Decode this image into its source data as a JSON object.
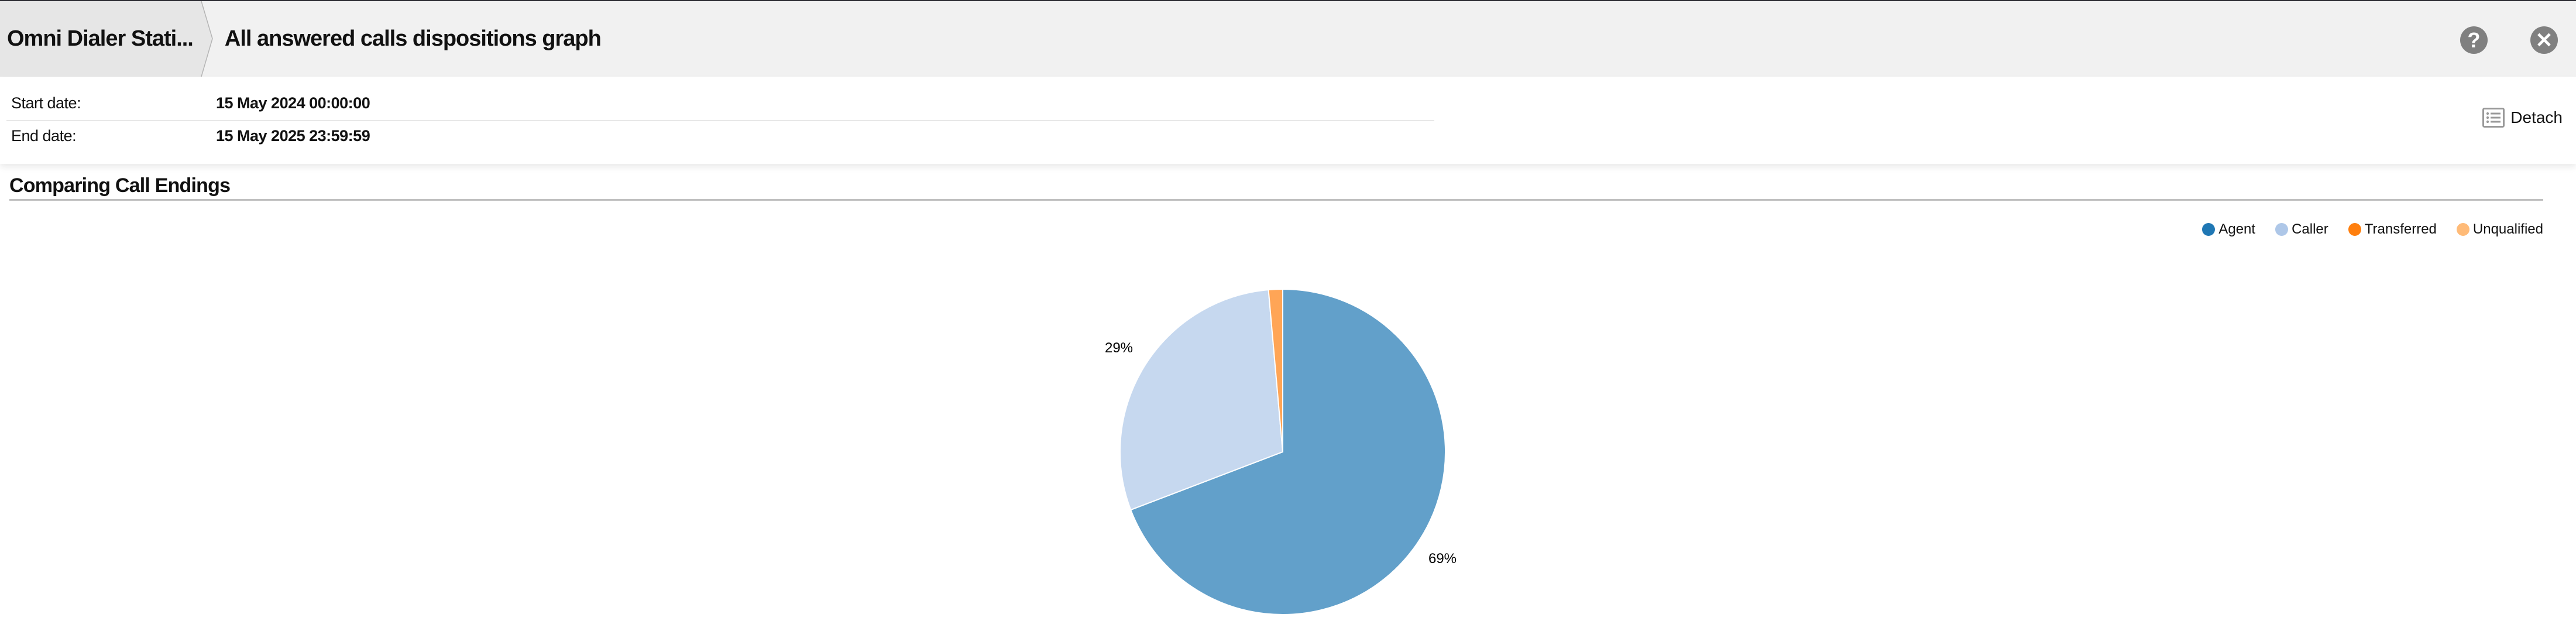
{
  "header": {
    "breadcrumb_parent": "Omni Dialer Stati...",
    "title": "All answered calls dispositions graph",
    "help_icon": "question-circle-icon",
    "close_icon": "close-circle-icon"
  },
  "info": {
    "rows": [
      {
        "label": "Start date:",
        "value": "15 May 2024 00:00:00"
      },
      {
        "label": "End date:",
        "value": "15 May 2025 23:59:59"
      }
    ],
    "detach_label": "Detach",
    "detach_icon": "list-icon"
  },
  "section": {
    "title": "Comparing Call Endings"
  },
  "chart_data": {
    "type": "pie",
    "title": "",
    "legend_placement": "top-right",
    "categories": [
      "Agent",
      "Caller",
      "Transferred",
      "Unqualified"
    ],
    "values": [
      69.2,
      29.4,
      1.4,
      0
    ],
    "data_labels": [
      "69%",
      "29%",
      "",
      ""
    ],
    "colors": [
      "#1f77b4",
      "#aec7e8",
      "#ff7f0e",
      "#ffbb78"
    ],
    "slice_opacity": 0.7
  }
}
